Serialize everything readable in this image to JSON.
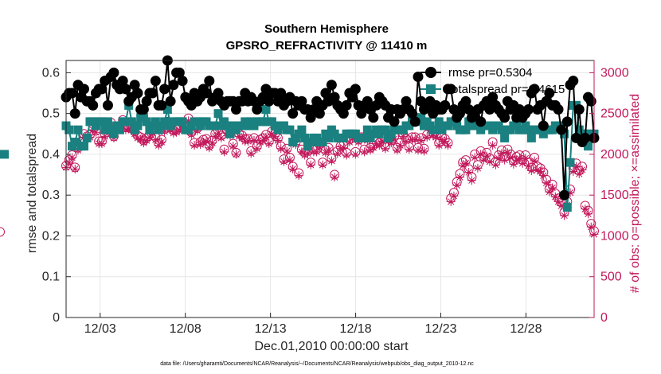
{
  "chart_data": {
    "type": "line",
    "title": "Southern Hemisphere",
    "subtitle": "GPSRO_REFRACTIVITY @ 11410 m",
    "xlabel": "Dec.01,2010 00:00:00 start",
    "ylabel": "rmse and totalspread",
    "y2label": "# of obs: o=possible; ×=assimilated",
    "footnote": "data file: /Users/gharamti/Documents/NCAR/Reanalysis/~/Documents/NCAR/Reanalysis/webpub/obs_diag_output_2010-12.nc",
    "xlim": [
      1.0,
      32.0
    ],
    "ylim": [
      0,
      0.63
    ],
    "y2lim": [
      0,
      3150
    ],
    "x_ticks": [
      3,
      8,
      13,
      18,
      23,
      28
    ],
    "x_tick_labels": [
      "12/03",
      "12/08",
      "12/13",
      "12/18",
      "12/23",
      "12/28"
    ],
    "y_ticks": [
      0,
      0.1,
      0.2,
      0.3,
      0.4,
      0.5,
      0.6
    ],
    "y_tick_labels": [
      "0",
      "0.1",
      "0.2",
      "0.3",
      "0.4",
      "0.5",
      "0.6"
    ],
    "y2_ticks": [
      0,
      500,
      1000,
      1500,
      2000,
      2500,
      3000
    ],
    "y2_tick_labels": [
      "0",
      "500",
      "1000",
      "1500",
      "2000",
      "2500",
      "3000"
    ],
    "legend_position": "top-right",
    "colors": {
      "rmse": "#000000",
      "spread": "#1a8080",
      "obs": "#c2185b",
      "grid": "#e6e6e6"
    },
    "series": [
      {
        "name": "rmse pr=0.5304",
        "axis": "left",
        "values": [
          0.54,
          0.55,
          0.55,
          0.5,
          0.57,
          0.54,
          0.56,
          0.53,
          0.53,
          0.52,
          0.55,
          0.56,
          0.56,
          0.58,
          0.52,
          0.59,
          0.6,
          0.57,
          0.56,
          0.58,
          0.56,
          0.53,
          0.54,
          0.57,
          0.55,
          0.51,
          0.51,
          0.53,
          0.55,
          0.55,
          0.58,
          0.52,
          0.52,
          0.56,
          0.63,
          0.53,
          0.57,
          0.6,
          0.6,
          0.58,
          0.54,
          0.53,
          0.52,
          0.55,
          0.53,
          0.54,
          0.56,
          0.55,
          0.58,
          0.53,
          0.54,
          0.55,
          0.53,
          0.52,
          0.53,
          0.53,
          0.53,
          0.51,
          0.53,
          0.53,
          0.55,
          0.53,
          0.54,
          0.53,
          0.51,
          0.53,
          0.54,
          0.56,
          0.53,
          0.55,
          0.55,
          0.53,
          0.55,
          0.52,
          0.53,
          0.54,
          0.5,
          0.53,
          0.52,
          0.53,
          0.51,
          0.51,
          0.49,
          0.51,
          0.53,
          0.5,
          0.52,
          0.55,
          0.53,
          0.57,
          0.54,
          0.52,
          0.51,
          0.5,
          0.52,
          0.55,
          0.54,
          0.56,
          0.52,
          0.5,
          0.52,
          0.53,
          0.51,
          0.49,
          0.52,
          0.54,
          0.53,
          0.52,
          0.49,
          0.51,
          0.48,
          0.51,
          0.5,
          0.51,
          0.53,
          0.51,
          0.5,
          0.48,
          0.59,
          0.53,
          0.51,
          0.52,
          0.53,
          0.5,
          0.52,
          0.51,
          0.51,
          0.52,
          0.56,
          0.56,
          0.51,
          0.49,
          0.5,
          0.52,
          0.53,
          0.51,
          0.49,
          0.5,
          0.51,
          0.48,
          0.52,
          0.53,
          0.51,
          0.54,
          0.52,
          0.51,
          0.5,
          0.49,
          0.53,
          0.51,
          0.52,
          0.49,
          0.51,
          0.49,
          0.5,
          0.51,
          0.55,
          0.56,
          0.51,
          0.52,
          0.47,
          0.53,
          0.55,
          0.52,
          0.52,
          0.51,
          0.46,
          0.3,
          0.48,
          0.57,
          0.58,
          0.44,
          0.51,
          0.43,
          0.44,
          0.54,
          0.53,
          0.44
        ]
      },
      {
        "name": "totalspread pr=0.4615",
        "axis": "left",
        "values": [
          0.47,
          0.46,
          0.42,
          0.43,
          0.46,
          0.42,
          0.42,
          0.44,
          0.48,
          0.48,
          0.47,
          0.48,
          0.48,
          0.46,
          0.48,
          0.46,
          0.45,
          0.47,
          0.46,
          0.48,
          0.48,
          0.52,
          0.48,
          0.46,
          0.47,
          0.49,
          0.49,
          0.48,
          0.46,
          0.47,
          0.48,
          0.46,
          0.47,
          0.48,
          0.51,
          0.47,
          0.48,
          0.48,
          0.48,
          0.48,
          0.46,
          0.46,
          0.47,
          0.48,
          0.48,
          0.47,
          0.48,
          0.48,
          0.47,
          0.47,
          0.47,
          0.5,
          0.47,
          0.48,
          0.47,
          0.45,
          0.47,
          0.46,
          0.47,
          0.47,
          0.48,
          0.47,
          0.48,
          0.47,
          0.48,
          0.48,
          0.48,
          0.51,
          0.48,
          0.48,
          0.47,
          0.46,
          0.47,
          0.47,
          0.46,
          0.46,
          0.43,
          0.44,
          0.45,
          0.46,
          0.44,
          0.42,
          0.43,
          0.44,
          0.44,
          0.43,
          0.43,
          0.45,
          0.44,
          0.46,
          0.45,
          0.44,
          0.44,
          0.44,
          0.45,
          0.45,
          0.45,
          0.45,
          0.44,
          0.44,
          0.44,
          0.46,
          0.44,
          0.45,
          0.46,
          0.45,
          0.46,
          0.46,
          0.44,
          0.45,
          0.46,
          0.46,
          0.46,
          0.46,
          0.47,
          0.47,
          0.48,
          0.49,
          0.48,
          0.49,
          0.47,
          0.48,
          0.47,
          0.46,
          0.46,
          0.48,
          0.46,
          0.47,
          0.47,
          0.48,
          0.48,
          0.47,
          0.46,
          0.46,
          0.46,
          0.48,
          0.47,
          0.48,
          0.47,
          0.46,
          0.47,
          0.47,
          0.47,
          0.46,
          0.47,
          0.47,
          0.46,
          0.44,
          0.46,
          0.46,
          0.47,
          0.48,
          0.46,
          0.46,
          0.47,
          0.46,
          0.44,
          0.46,
          0.46,
          0.46,
          0.45,
          0.46,
          0.46,
          0.46,
          0.47,
          0.47,
          0.47,
          0.45,
          0.27,
          0.38,
          0.52,
          0.52,
          0.46,
          0.45,
          0.45,
          0.42,
          0.45,
          0.45,
          0.4
        ]
      },
      {
        "name": "possible",
        "axis": "right",
        "marker": "circle",
        "values": [
          1860,
          1930,
          1990,
          1840,
          2080,
          2150,
          2250,
          2220,
          2240,
          2330,
          2290,
          2160,
          2160,
          2250,
          2300,
          2390,
          2220,
          2340,
          2330,
          2420,
          2330,
          2340,
          2320,
          2280,
          2230,
          2210,
          2170,
          2200,
          2240,
          2290,
          2210,
          2140,
          2180,
          2310,
          2400,
          2330,
          2290,
          2300,
          2330,
          2390,
          2330,
          2440,
          2270,
          2140,
          2320,
          2150,
          2180,
          2190,
          2110,
          2170,
          2250,
          2290,
          2230,
          2060,
          2290,
          2260,
          2130,
          2020,
          2250,
          2230,
          2190,
          2190,
          2040,
          2200,
          2100,
          2180,
          2200,
          2240,
          2160,
          2280,
          2250,
          2200,
          2100,
          1940,
          2070,
          1960,
          1850,
          2150,
          1770,
          2060,
          2020,
          2040,
          1900,
          2060,
          2060,
          2120,
          1900,
          2050,
          2080,
          1950,
          1750,
          2040,
          2100,
          2110,
          2020,
          2180,
          2230,
          2030,
          2180,
          2210,
          2060,
          2200,
          2080,
          2110,
          2160,
          2140,
          2190,
          2100,
          2190,
          2170,
          2220,
          2080,
          2140,
          2250,
          2190,
          2090,
          2210,
          2210,
          2080,
          2200,
          2070,
          2240,
          2330,
          2260,
          2240,
          2140,
          2210,
          2190,
          2140,
          1460,
          1530,
          1660,
          1760,
          1900,
          1930,
          1820,
          1720,
          2000,
          1870,
          2040,
          1970,
          2020,
          1950,
          2150,
          1910,
          1990,
          2050,
          1970,
          2060,
          2000,
          1920,
          1970,
          1990,
          1930,
          1990,
          1900,
          1840,
          1960,
          1850,
          1830,
          1780,
          1690,
          1580,
          1630,
          1520,
          1460,
          1410,
          1290,
          1420,
          1570,
          1830,
          1890,
          1800,
          1850,
          1370,
          1310,
          1150,
          1060,
          1050
        ]
      },
      {
        "name": "assimilated",
        "axis": "right",
        "marker": "asterisk",
        "values": [
          1840,
          1900,
          1960,
          1820,
          2050,
          2120,
          2210,
          2190,
          2210,
          2300,
          2270,
          2130,
          2130,
          2220,
          2280,
          2360,
          2200,
          2310,
          2300,
          2390,
          2300,
          2310,
          2300,
          2250,
          2200,
          2180,
          2140,
          2170,
          2210,
          2260,
          2180,
          2110,
          2150,
          2280,
          2370,
          2300,
          2260,
          2270,
          2300,
          2360,
          2300,
          2410,
          2240,
          2110,
          2290,
          2120,
          2150,
          2160,
          2080,
          2140,
          2220,
          2260,
          2200,
          2030,
          2260,
          2230,
          2100,
          2000,
          2220,
          2200,
          2160,
          2160,
          2010,
          2170,
          2070,
          2150,
          2170,
          2210,
          2130,
          2250,
          2220,
          2170,
          2070,
          1910,
          2040,
          1930,
          1820,
          2120,
          1740,
          2030,
          1990,
          2010,
          1870,
          2030,
          2030,
          2090,
          1870,
          2020,
          2050,
          1920,
          1720,
          2010,
          2070,
          2080,
          1990,
          2150,
          2200,
          2000,
          2150,
          2180,
          2030,
          2170,
          2050,
          2080,
          2130,
          2110,
          2160,
          2070,
          2160,
          2140,
          2190,
          2050,
          2110,
          2220,
          2160,
          2060,
          2180,
          2180,
          2050,
          2170,
          2040,
          2210,
          2300,
          2230,
          2210,
          2110,
          2180,
          2160,
          2110,
          1420,
          1490,
          1620,
          1720,
          1860,
          1890,
          1780,
          1680,
          1960,
          1830,
          2000,
          1930,
          1980,
          1910,
          2110,
          1870,
          1950,
          2010,
          1930,
          2020,
          1960,
          1880,
          1930,
          1950,
          1890,
          1950,
          1860,
          1800,
          1920,
          1810,
          1790,
          1740,
          1650,
          1540,
          1590,
          1480,
          1420,
          1370,
          1250,
          1380,
          1530,
          1790,
          1850,
          1760,
          1810,
          1330,
          1270,
          1110,
          1020,
          0
        ]
      }
    ]
  }
}
